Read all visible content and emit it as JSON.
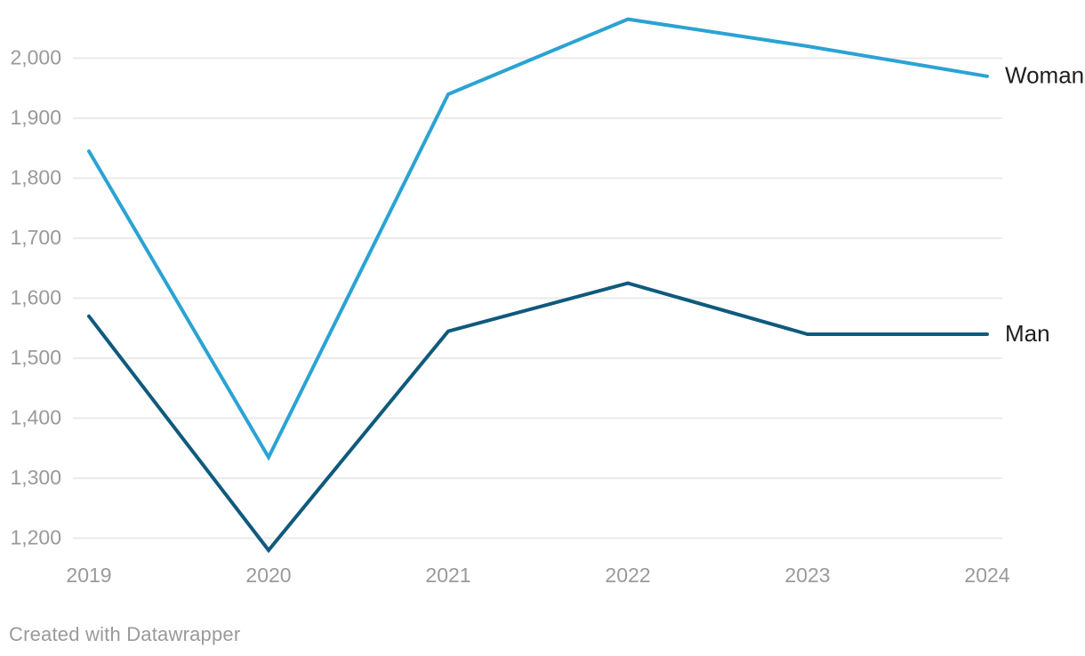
{
  "chart_data": {
    "type": "line",
    "title": "",
    "xlabel": "",
    "ylabel": "",
    "x": [
      "2019",
      "2020",
      "2021",
      "2022",
      "2023",
      "2024"
    ],
    "series": [
      {
        "name": "Woman",
        "color": "#2AA3D3",
        "values": [
          1845,
          1335,
          1940,
          2065,
          2020,
          1970
        ]
      },
      {
        "name": "Man",
        "color": "#0F5A7D",
        "values": [
          1570,
          1180,
          1545,
          1625,
          1540,
          1540
        ]
      }
    ],
    "yticks": [
      2000,
      1900,
      1800,
      1700,
      1600,
      1500,
      1400,
      1300,
      1200
    ],
    "ytick_labels": [
      "2,000",
      "1,900",
      "1,800",
      "1,700",
      "1,600",
      "1,500",
      "1,400",
      "1,300",
      "1,200"
    ],
    "ylim": [
      1160,
      2070
    ],
    "grid": "horizontal",
    "legend_position": "direct-label-right"
  },
  "colors": {
    "background": "#FFFFFF",
    "gridline": "#EBEBEB",
    "axis_text": "#9A9A9A",
    "series_label_text": "#1F1F1F"
  },
  "footer": {
    "credit": "Created with Datawrapper"
  }
}
